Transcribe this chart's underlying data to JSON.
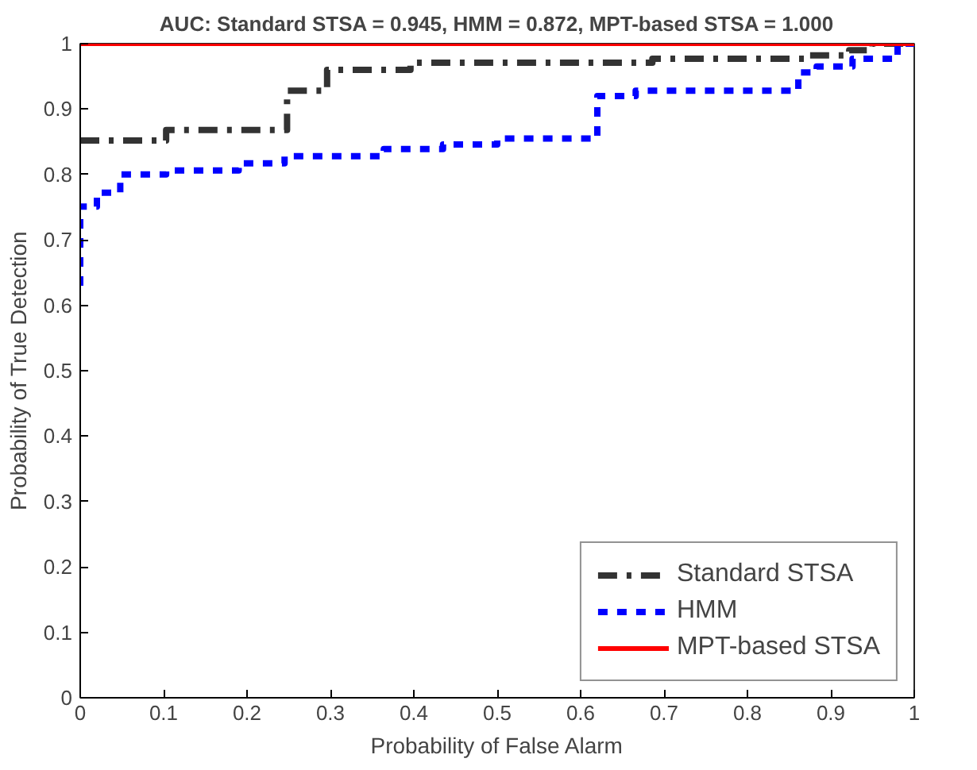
{
  "chart_data": {
    "type": "step",
    "title": "AUC: Standard STSA = 0.945, HMM = 0.872, MPT-based STSA = 1.000",
    "xlabel": "Probability of False Alarm",
    "ylabel": "Probability of True Detection",
    "xlim": [
      0,
      1
    ],
    "ylim": [
      0,
      1
    ],
    "xticks": [
      0,
      0.1,
      0.2,
      0.3,
      0.4,
      0.5,
      0.6,
      0.7,
      0.8,
      0.9,
      1
    ],
    "yticks": [
      0,
      0.1,
      0.2,
      0.3,
      0.4,
      0.5,
      0.6,
      0.7,
      0.8,
      0.9,
      1
    ],
    "grid": false,
    "legend": "bottom right",
    "marker": "none",
    "series": [
      {
        "name": "Standard STSA",
        "color": "#333333",
        "line_style": "dashdot",
        "x": [
          0,
          0.103,
          0.248,
          0.296,
          0.396,
          0.686,
          0.873,
          0.922,
          0.95,
          1
        ],
        "values": [
          0.852,
          0.868,
          0.928,
          0.96,
          0.971,
          0.977,
          0.982,
          0.99,
          1,
          1
        ]
      },
      {
        "name": "HMM",
        "color": "#0000ff",
        "line_style": "dashed",
        "x": [
          0,
          0,
          0.02,
          0.048,
          0.103,
          0.19,
          0.245,
          0.364,
          0.435,
          0.5,
          0.62,
          0.666,
          0.861,
          0.883,
          0.926,
          0.98,
          1
        ],
        "values": [
          0.63,
          0.751,
          0.772,
          0.8,
          0.806,
          0.817,
          0.828,
          0.839,
          0.846,
          0.855,
          0.92,
          0.928,
          0.956,
          0.965,
          0.977,
          1,
          1
        ]
      },
      {
        "name": "MPT-based STSA",
        "color": "#ff0000",
        "line_style": "solid",
        "x": [
          0,
          1
        ],
        "values": [
          1,
          1
        ]
      }
    ]
  }
}
